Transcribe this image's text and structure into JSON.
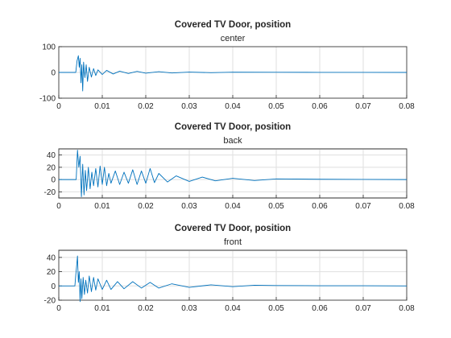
{
  "chart_data": [
    {
      "type": "line",
      "title": "Covered TV Door, position",
      "subtitle": "center",
      "xlim": [
        0,
        0.08
      ],
      "ylim": [
        -100,
        100
      ],
      "xticks": [
        "0",
        "0.01",
        "0.02",
        "0.03",
        "0.04",
        "0.05",
        "0.06",
        "0.07",
        "0.08"
      ],
      "yticks": [
        "100",
        "0",
        "-100"
      ],
      "grid": true,
      "color": "#0072bd",
      "series": [
        {
          "x": [
            0,
            0.0039,
            0.0042,
            0.0045,
            0.0047,
            0.0049,
            0.0051,
            0.0053,
            0.0055,
            0.0057,
            0.006,
            0.0063,
            0.0066,
            0.007,
            0.0075,
            0.008,
            0.0085,
            0.009,
            0.01,
            0.011,
            0.0125,
            0.014,
            0.016,
            0.018,
            0.02,
            0.023,
            0.026,
            0.03,
            0.035,
            0.04,
            0.05,
            0.06,
            0.07,
            0.08
          ],
          "y": [
            0,
            0,
            45,
            65,
            20,
            55,
            -40,
            30,
            -72,
            40,
            -20,
            30,
            -35,
            20,
            -18,
            15,
            -12,
            10,
            -8,
            8,
            -6,
            5,
            -4,
            4,
            -3,
            3,
            -2,
            1.5,
            -1,
            1,
            0.5,
            0.3,
            0.2,
            0
          ]
        }
      ]
    },
    {
      "type": "line",
      "title": "Covered TV Door, position",
      "subtitle": "back",
      "xlim": [
        0,
        0.08
      ],
      "ylim": [
        -30,
        50
      ],
      "xticks": [
        "0",
        "0.01",
        "0.02",
        "0.03",
        "0.04",
        "0.05",
        "0.06",
        "0.07",
        "0.08"
      ],
      "yticks": [
        "40",
        "20",
        "0",
        "-20"
      ],
      "grid": true,
      "color": "#0072bd",
      "series": [
        {
          "x": [
            0,
            0.004,
            0.0043,
            0.0046,
            0.0049,
            0.0052,
            0.0055,
            0.0058,
            0.0061,
            0.0064,
            0.0068,
            0.0072,
            0.0076,
            0.008,
            0.0085,
            0.009,
            0.0095,
            0.01,
            0.0105,
            0.011,
            0.0115,
            0.012,
            0.013,
            0.014,
            0.015,
            0.016,
            0.017,
            0.018,
            0.019,
            0.02,
            0.021,
            0.022,
            0.023,
            0.025,
            0.027,
            0.03,
            0.033,
            0.036,
            0.04,
            0.045,
            0.05,
            0.06,
            0.07,
            0.08
          ],
          "y": [
            0,
            0,
            48,
            20,
            38,
            -28,
            25,
            -25,
            15,
            -18,
            20,
            -15,
            12,
            -10,
            18,
            -12,
            22,
            -8,
            20,
            -10,
            10,
            -6,
            14,
            -8,
            12,
            -6,
            16,
            -8,
            14,
            -6,
            18,
            -5,
            10,
            -4,
            6,
            -3,
            4,
            -2,
            2,
            -1.5,
            1,
            0.5,
            0.3,
            0
          ]
        }
      ]
    },
    {
      "type": "line",
      "title": "Covered TV Door, position",
      "subtitle": "front",
      "xlim": [
        0,
        0.08
      ],
      "ylim": [
        -20,
        50
      ],
      "xticks": [
        "0",
        "0.01",
        "0.02",
        "0.03",
        "0.04",
        "0.05",
        "0.06",
        "0.07",
        "0.08"
      ],
      "yticks": [
        "40",
        "20",
        "0",
        "-20"
      ],
      "grid": true,
      "color": "#0072bd",
      "series": [
        {
          "x": [
            0,
            0.0037,
            0.0039,
            0.0041,
            0.0043,
            0.0045,
            0.0047,
            0.0049,
            0.0051,
            0.0053,
            0.0056,
            0.0059,
            0.0062,
            0.0066,
            0.007,
            0.0075,
            0.008,
            0.0085,
            0.009,
            0.01,
            0.011,
            0.012,
            0.0135,
            0.015,
            0.017,
            0.019,
            0.021,
            0.023,
            0.026,
            0.03,
            0.035,
            0.04,
            0.045,
            0.05,
            0.06,
            0.07,
            0.08
          ],
          "y": [
            0,
            0,
            15,
            28,
            42,
            5,
            20,
            -22,
            10,
            -18,
            12,
            -12,
            8,
            -10,
            14,
            -8,
            12,
            -6,
            10,
            -5,
            8,
            -5,
            6,
            -4,
            6,
            -3,
            5,
            -3,
            3,
            -2,
            1.5,
            -1,
            1,
            0.5,
            0.3,
            0.2,
            0
          ]
        }
      ]
    }
  ]
}
